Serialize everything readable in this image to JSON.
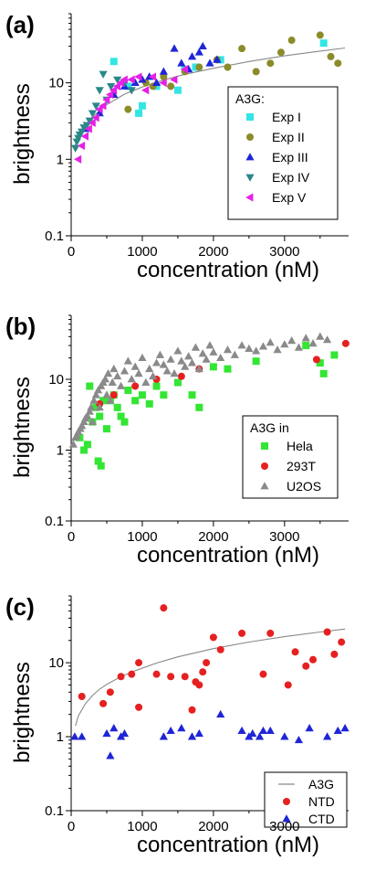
{
  "chart_data": [
    {
      "type": "scatter",
      "panel_label": "(a)",
      "xlabel": "concentration (nM)",
      "ylabel": "brightness",
      "xlim": [
        0,
        3900
      ],
      "ylim": [
        0.1,
        80
      ],
      "yscale": "log",
      "xticks": [
        0,
        1000,
        2000,
        3000
      ],
      "yticks": [
        0.1,
        1,
        10
      ],
      "legend_title": "A3G:",
      "legend_position": "center-right",
      "fit_line": {
        "x": [
          50,
          150,
          300,
          500,
          750,
          1000,
          1300,
          1600,
          2000,
          2500,
          3000,
          3500,
          3850
        ],
        "y": [
          1.5,
          2.4,
          3.6,
          5.2,
          7.1,
          8.8,
          10.9,
          12.9,
          15.5,
          19,
          22.5,
          26,
          28.5
        ],
        "color": "#888888"
      },
      "series": [
        {
          "name": "Exp I",
          "marker": "square",
          "color": "#33e6e6",
          "x": [
            600,
            950,
            1000,
            1200,
            1500,
            1750,
            2100,
            3550,
            800,
            1600
          ],
          "y": [
            19,
            4,
            5,
            9,
            8,
            16,
            20,
            33,
            9,
            15
          ]
        },
        {
          "name": "Exp II",
          "marker": "circle",
          "color": "#8b8b2a",
          "x": [
            800,
            1050,
            1150,
            1300,
            1600,
            1800,
            2050,
            2400,
            2600,
            2800,
            3100,
            3500,
            3650,
            3750,
            1400,
            2200,
            2950
          ],
          "y": [
            4.5,
            10,
            9,
            12,
            14,
            16,
            20,
            28,
            14,
            18,
            36,
            42,
            22,
            18,
            9,
            16,
            25
          ]
        },
        {
          "name": "Exp III",
          "marker": "triangle-up",
          "color": "#1f25d6",
          "x": [
            200,
            400,
            600,
            750,
            900,
            1000,
            1100,
            1300,
            1450,
            1550,
            1700,
            1800,
            1850,
            1950,
            2050,
            1200,
            1650
          ],
          "y": [
            2.5,
            4,
            7,
            9,
            10,
            11,
            12,
            14,
            28,
            18,
            22,
            25,
            30,
            18,
            20,
            10,
            15
          ]
        },
        {
          "name": "Exp IV",
          "marker": "triangle-down",
          "color": "#2a8888",
          "x": [
            60,
            80,
            100,
            120,
            150,
            180,
            220,
            260,
            300,
            350,
            400,
            450,
            500,
            560,
            650,
            750,
            850
          ],
          "y": [
            1.4,
            1.7,
            1.9,
            2.1,
            2.3,
            2.6,
            2.8,
            3.2,
            4,
            5,
            8,
            13,
            6,
            9,
            11,
            10,
            8
          ]
        },
        {
          "name": "Exp V",
          "marker": "triangle-left",
          "color": "#e620e6",
          "x": [
            100,
            150,
            200,
            250,
            300,
            350,
            400,
            450,
            500,
            550,
            600,
            650,
            700,
            750,
            850,
            950,
            1050,
            1150,
            1300,
            1450,
            1600
          ],
          "y": [
            1,
            1.5,
            2,
            2.5,
            3,
            3.5,
            4.5,
            5,
            6,
            7,
            8,
            9,
            10,
            11,
            11,
            12,
            8,
            12,
            10,
            11,
            15
          ]
        }
      ]
    },
    {
      "type": "scatter",
      "panel_label": "(b)",
      "xlabel": "concentration (nM)",
      "ylabel": "brightness",
      "xlim": [
        0,
        3900
      ],
      "ylim": [
        0.1,
        80
      ],
      "yscale": "log",
      "xticks": [
        0,
        1000,
        2000,
        3000
      ],
      "yticks": [
        0.1,
        1,
        10
      ],
      "legend_title": "A3G in",
      "legend_position": "center-right",
      "series": [
        {
          "name": "Hela",
          "marker": "square",
          "color": "#33e633",
          "x": [
            120,
            180,
            230,
            260,
            300,
            350,
            380,
            400,
            420,
            450,
            500,
            550,
            600,
            650,
            700,
            750,
            800,
            900,
            1000,
            1100,
            1200,
            1300,
            1500,
            1700,
            1800,
            2000,
            2200,
            2600,
            3300,
            3500,
            3550,
            3700
          ],
          "y": [
            1.5,
            1,
            1.2,
            8,
            2.5,
            4,
            0.7,
            3,
            0.6,
            5,
            2,
            5,
            6,
            4,
            3,
            2.5,
            7,
            5,
            6,
            4.5,
            8,
            6,
            9,
            6,
            4,
            15,
            14,
            18,
            30,
            17,
            12,
            22
          ]
        },
        {
          "name": "293T",
          "marker": "circle",
          "color": "#e62020",
          "x": [
            400,
            600,
            900,
            1200,
            1550,
            1800,
            3450,
            3860
          ],
          "y": [
            4.5,
            6,
            8,
            10,
            11,
            14,
            19,
            32
          ]
        },
        {
          "name": "U2OS",
          "marker": "triangle-up",
          "color": "#8a8a8a",
          "x": [
            30,
            60,
            80,
            100,
            130,
            150,
            180,
            200,
            230,
            260,
            280,
            300,
            320,
            350,
            380,
            400,
            420,
            450,
            480,
            500,
            520,
            550,
            580,
            600,
            650,
            700,
            750,
            800,
            850,
            900,
            950,
            1000,
            1050,
            1100,
            1150,
            1200,
            1250,
            1300,
            1350,
            1400,
            1450,
            1500,
            1550,
            1600,
            1650,
            1700,
            1750,
            1800,
            1850,
            1900,
            1950,
            2000,
            2100,
            2200,
            2300,
            2400,
            2500,
            2600,
            2700,
            2800,
            2900,
            3000,
            3100,
            3200,
            3300,
            3400,
            3500,
            3600
          ],
          "y": [
            1.2,
            1.5,
            1.6,
            1.8,
            2,
            2.2,
            2.5,
            2.8,
            3,
            3.5,
            4,
            2.5,
            5,
            6,
            7,
            4,
            8,
            9,
            10,
            6,
            12,
            5,
            9,
            14,
            11,
            8,
            13,
            18,
            10,
            15,
            12,
            20,
            9,
            14,
            11,
            17,
            22,
            16,
            13,
            19,
            12,
            25,
            18,
            15,
            21,
            17,
            28,
            14,
            23,
            19,
            30,
            24,
            20,
            26,
            22,
            30,
            27,
            25,
            29,
            33,
            26,
            31,
            35,
            28,
            38,
            32,
            40,
            36
          ]
        }
      ]
    },
    {
      "type": "scatter",
      "panel_label": "(c)",
      "xlabel": "concentration (nM)",
      "ylabel": "brightness",
      "xlim": [
        0,
        3900
      ],
      "ylim": [
        0.1,
        80
      ],
      "yscale": "log",
      "xticks": [
        0,
        1000,
        2000,
        3000
      ],
      "yticks": [
        0.1,
        1,
        10
      ],
      "legend_position": "bottom-right",
      "series": [
        {
          "name": "A3G",
          "marker": "line",
          "color": "#888888",
          "x": [
            60,
            100,
            200,
            300,
            400,
            500,
            700,
            900,
            1200,
            1500,
            2000,
            2500,
            3000,
            3500,
            3850
          ],
          "y": [
            1.4,
            1.9,
            2.8,
            3.6,
            4.4,
            5.1,
            6.5,
            7.8,
            9.9,
            12,
            15.5,
            19,
            22.5,
            26,
            28.5
          ]
        },
        {
          "name": "NTD",
          "marker": "circle",
          "color": "#e62020",
          "x": [
            150,
            450,
            550,
            700,
            850,
            950,
            1200,
            1300,
            1400,
            1600,
            1700,
            1750,
            1850,
            1900,
            2000,
            2100,
            2400,
            2700,
            2800,
            3050,
            3150,
            3300,
            3400,
            3600,
            3700,
            3800,
            950,
            1800
          ],
          "y": [
            3.5,
            2.8,
            4,
            6.5,
            7,
            10,
            7,
            55,
            6.5,
            6.5,
            2.3,
            5.5,
            7.5,
            10,
            22,
            15,
            25,
            7,
            25,
            5,
            14,
            9,
            11,
            26,
            13,
            19,
            2.5,
            5
          ]
        },
        {
          "name": "CTD",
          "marker": "triangle-up",
          "color": "#1f25d6",
          "x": [
            50,
            150,
            500,
            550,
            600,
            700,
            750,
            1300,
            1400,
            1550,
            1700,
            1800,
            2100,
            2400,
            2500,
            2550,
            2650,
            2700,
            2800,
            3000,
            3200,
            3350,
            3600,
            3750,
            3850
          ],
          "y": [
            1,
            1,
            1.1,
            0.55,
            1.3,
            1,
            1.1,
            1,
            1.2,
            1.3,
            1,
            1.1,
            2,
            1.2,
            1,
            1.1,
            1,
            1.2,
            1.2,
            1,
            0.9,
            1.3,
            1,
            1.2,
            1.3
          ]
        }
      ]
    }
  ]
}
